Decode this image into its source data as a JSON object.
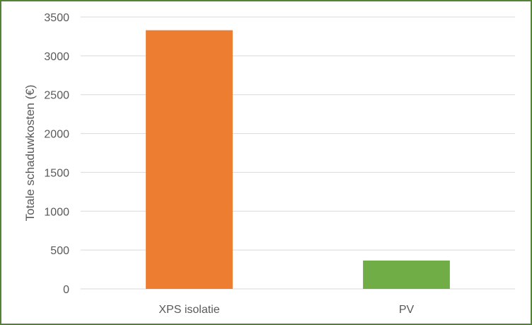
{
  "chart_data": {
    "type": "bar",
    "title": "",
    "xlabel": "",
    "ylabel": "Totale schaduwkosten (€)",
    "categories": [
      "XPS isolatie",
      "PV"
    ],
    "values": [
      3330,
      365
    ],
    "bar_colors": [
      "#ED7D31",
      "#70AD47"
    ],
    "ylim": [
      0,
      3500
    ],
    "yticks": [
      0,
      500,
      1000,
      1500,
      2000,
      2500,
      3000,
      3500
    ],
    "grid": true,
    "legend": "none"
  },
  "colors": {
    "frame_border": "#538135",
    "gridline": "#D9D9D9",
    "text": "#595959"
  }
}
